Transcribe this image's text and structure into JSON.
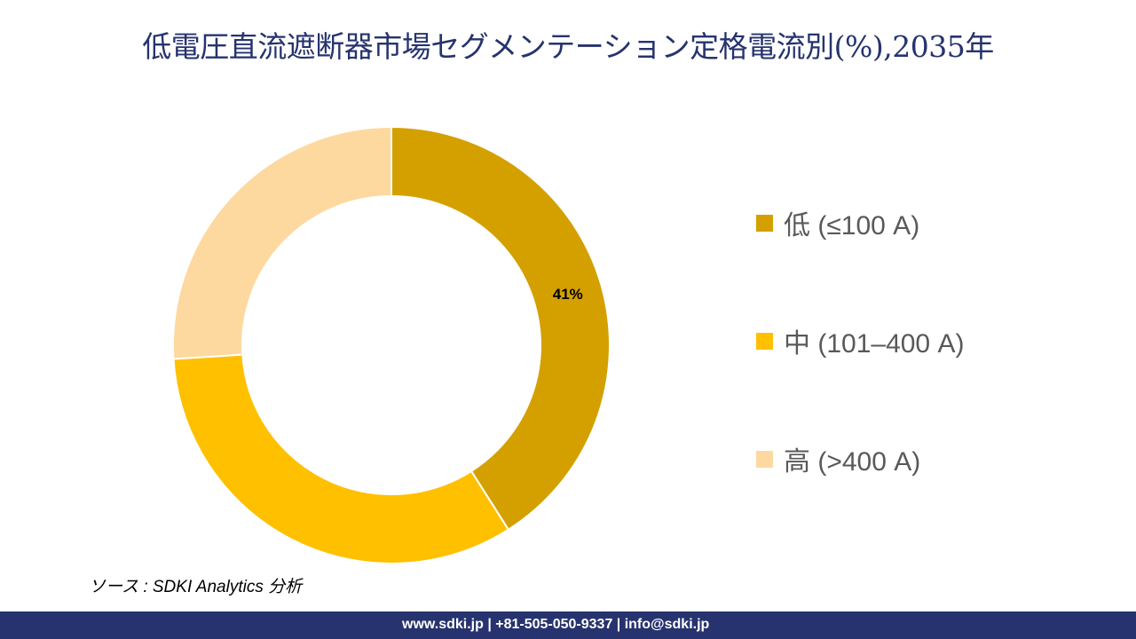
{
  "title": "低電圧直流遮断器市場セグメンテーション定格電流別(%),2035年",
  "chart_data": {
    "type": "pie",
    "variant": "donut",
    "title": "低電圧直流遮断器市場セグメンテーション定格電流別(%),2035年",
    "categories": [
      "低 (≤100 A)",
      "中 (101–400 A)",
      "高 (>400 A)"
    ],
    "values": [
      41,
      33,
      26
    ],
    "data_labels": [
      "41%",
      "",
      ""
    ],
    "colors": [
      "#D4A000",
      "#FFC000",
      "#FDD9A0"
    ],
    "legend_position": "right"
  },
  "source": "ソース : SDKI Analytics 分析",
  "footer": "www.sdki.jp | +81-505-050-9337 | info@sdki.jp"
}
